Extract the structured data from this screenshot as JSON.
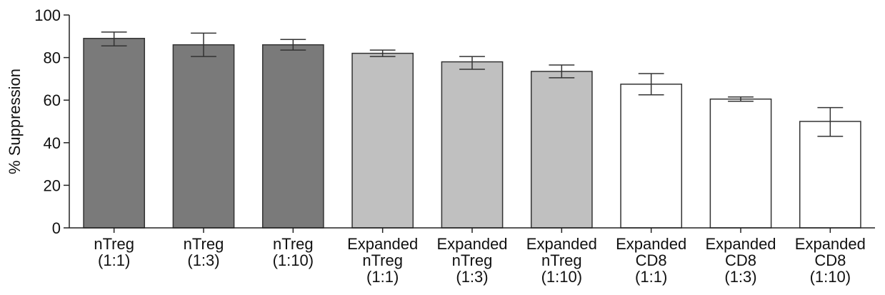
{
  "chart_data": {
    "type": "bar",
    "title": "",
    "xlabel": "",
    "ylabel": "% Suppression",
    "ylim": [
      0,
      100
    ],
    "yticks": [
      0,
      20,
      40,
      60,
      80,
      100
    ],
    "grid": false,
    "categories": [
      [
        "nTreg",
        "(1:1)"
      ],
      [
        "nTreg",
        "(1:3)"
      ],
      [
        "nTreg",
        "(1:10)"
      ],
      [
        "Expanded",
        "nTreg",
        "(1:1)"
      ],
      [
        "Expanded",
        "nTreg",
        "(1:3)"
      ],
      [
        "Expanded",
        "nTreg",
        "(1:10)"
      ],
      [
        "Expanded",
        "CD8",
        "(1:1)"
      ],
      [
        "Expanded",
        "CD8",
        "(1:3)"
      ],
      [
        "Expanded",
        "CD8",
        "(1:10)"
      ]
    ],
    "values": [
      89,
      86,
      86,
      82,
      78,
      73.5,
      67.5,
      60.5,
      50
    ],
    "error_low": [
      85.5,
      80.5,
      83.5,
      80.5,
      74.5,
      70.5,
      62.5,
      59.5,
      43
    ],
    "error_high": [
      92,
      91.5,
      88.5,
      83.5,
      80.5,
      76.5,
      72.5,
      61.5,
      56.5
    ],
    "bar_colors": [
      "#7a7a7a",
      "#7a7a7a",
      "#7a7a7a",
      "#c0c0c0",
      "#c0c0c0",
      "#c0c0c0",
      "#ffffff",
      "#ffffff",
      "#ffffff"
    ]
  }
}
